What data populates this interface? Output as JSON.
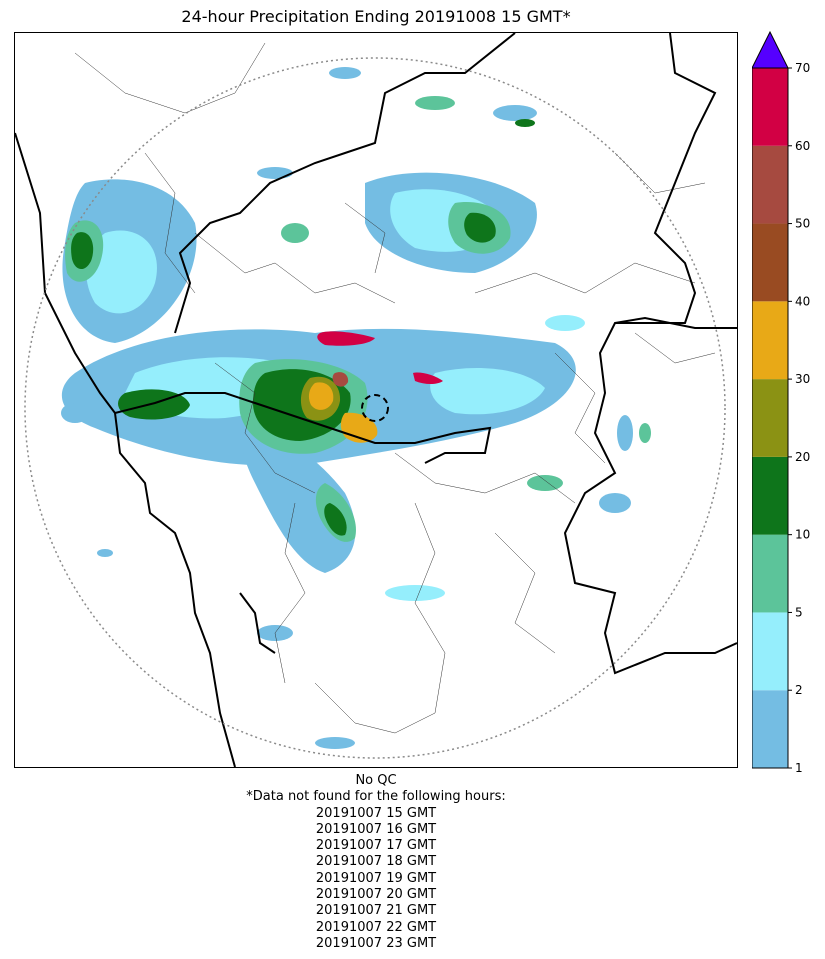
{
  "title": "24-hour Precipitation Ending 20191008 15 GMT*",
  "colorbar": {
    "ticks": [
      "1",
      "2",
      "5",
      "10",
      "20",
      "30",
      "40",
      "50",
      "60",
      "70"
    ],
    "colors": [
      "#74bde3",
      "#95eefc",
      "#5cc49a",
      "#0e751b",
      "#8b9214",
      "#e8a917",
      "#994b22",
      "#a64a40",
      "#d20044"
    ],
    "extend_color": "#5500ff"
  },
  "map": {
    "land_color": "#ffffff",
    "country_border_color": "#000000",
    "range_ring_color": "#8a8a8a"
  },
  "footer": {
    "qc_note": "No QC",
    "missing_header": "*Data not found for the following hours:",
    "missing_hours": [
      "20191007 15 GMT",
      "20191007 16 GMT",
      "20191007 17 GMT",
      "20191007 18 GMT",
      "20191007 19 GMT",
      "20191007 20 GMT",
      "20191007 21 GMT",
      "20191007 22 GMT",
      "20191007 23 GMT"
    ]
  }
}
